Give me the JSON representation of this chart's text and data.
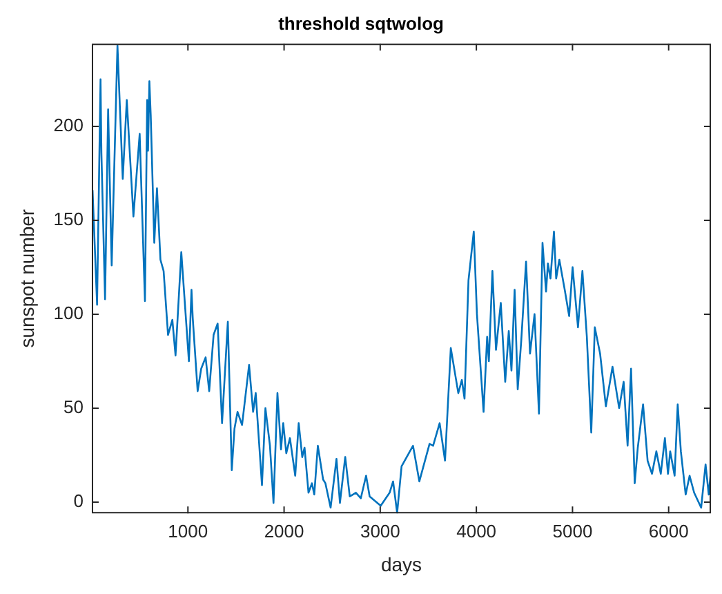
{
  "chart_data": {
    "type": "line",
    "title": "threshold sqtwolog",
    "xlabel": "days",
    "ylabel": "sunspot number",
    "x": [
      8,
      55,
      91,
      100,
      138,
      170,
      207,
      267,
      322,
      364,
      433,
      498,
      553,
      576,
      585,
      599,
      613,
      650,
      678,
      714,
      747,
      793,
      838,
      871,
      931,
      1010,
      1037,
      1050,
      1101,
      1138,
      1184,
      1221,
      1267,
      1309,
      1355,
      1415,
      1456,
      1484,
      1516,
      1563,
      1636,
      1678,
      1705,
      1770,
      1806,
      1853,
      1890,
      1931,
      1968,
      1991,
      2023,
      2061,
      2116,
      2152,
      2189,
      2213,
      2254,
      2290,
      2314,
      2351,
      2406,
      2430,
      2484,
      2545,
      2581,
      2636,
      2683,
      2747,
      2798,
      2853,
      2890,
      3005,
      3098,
      3134,
      3176,
      3222,
      3341,
      3407,
      3513,
      3550,
      3618,
      3674,
      3734,
      3812,
      3849,
      3877,
      3918,
      3973,
      4006,
      4075,
      4112,
      4130,
      4167,
      4204,
      4254,
      4300,
      4337,
      4365,
      4398,
      4430,
      4467,
      4517,
      4558,
      4605,
      4651,
      4688,
      4725,
      4744,
      4771,
      4807,
      4830,
      4863,
      4919,
      4965,
      5001,
      5057,
      5103,
      5149,
      5195,
      5232,
      5287,
      5347,
      5416,
      5485,
      5532,
      5573,
      5609,
      5647,
      5679,
      5734,
      5781,
      5827,
      5872,
      5918,
      5961,
      5993,
      6016,
      6062,
      6094,
      6127,
      6177,
      6218,
      6265,
      6338,
      6384,
      6417,
      6440
    ],
    "series": [
      {
        "color": "#0072bd",
        "values": [
          166,
          105,
          225,
          186,
          108,
          209,
          126,
          243,
          172,
          214,
          152,
          196,
          107,
          214,
          187,
          224,
          206,
          138,
          167,
          129,
          123,
          89,
          97,
          78,
          133,
          75,
          113,
          98,
          59,
          71,
          77,
          59,
          89,
          95,
          42,
          96,
          17,
          39,
          48,
          41,
          73,
          48,
          58,
          9,
          50,
          30,
          -0.5,
          58,
          28,
          42,
          26,
          34,
          14,
          42,
          24,
          29,
          5,
          10,
          4,
          30,
          12,
          10,
          -3,
          23,
          -0.5,
          24,
          3,
          5,
          2,
          14,
          3,
          -2,
          5,
          11,
          -5.8,
          19,
          30,
          11,
          31,
          30,
          42,
          22,
          82,
          58,
          65,
          55,
          118,
          144,
          100,
          48,
          88,
          75,
          123,
          81,
          106,
          64,
          91,
          70,
          113,
          60,
          86,
          128,
          79,
          100,
          47,
          138,
          112,
          127,
          119,
          144,
          119,
          129,
          113,
          99,
          125,
          93,
          123,
          88,
          37,
          93,
          79,
          51,
          72,
          50,
          64,
          30,
          71,
          10,
          29,
          52,
          22,
          15,
          27,
          15,
          34,
          15,
          27,
          14,
          52,
          27,
          4,
          14,
          5,
          -3,
          20,
          4,
          17
        ]
      }
    ],
    "xlim": [
      0,
      6440
    ],
    "ylim": [
      -6,
      244
    ],
    "xticks": [
      1000,
      2000,
      3000,
      4000,
      5000,
      6000
    ],
    "yticks": [
      0,
      50,
      100,
      150,
      200
    ],
    "grid": false,
    "legend": false,
    "marker": "none",
    "line_style": "solid"
  }
}
